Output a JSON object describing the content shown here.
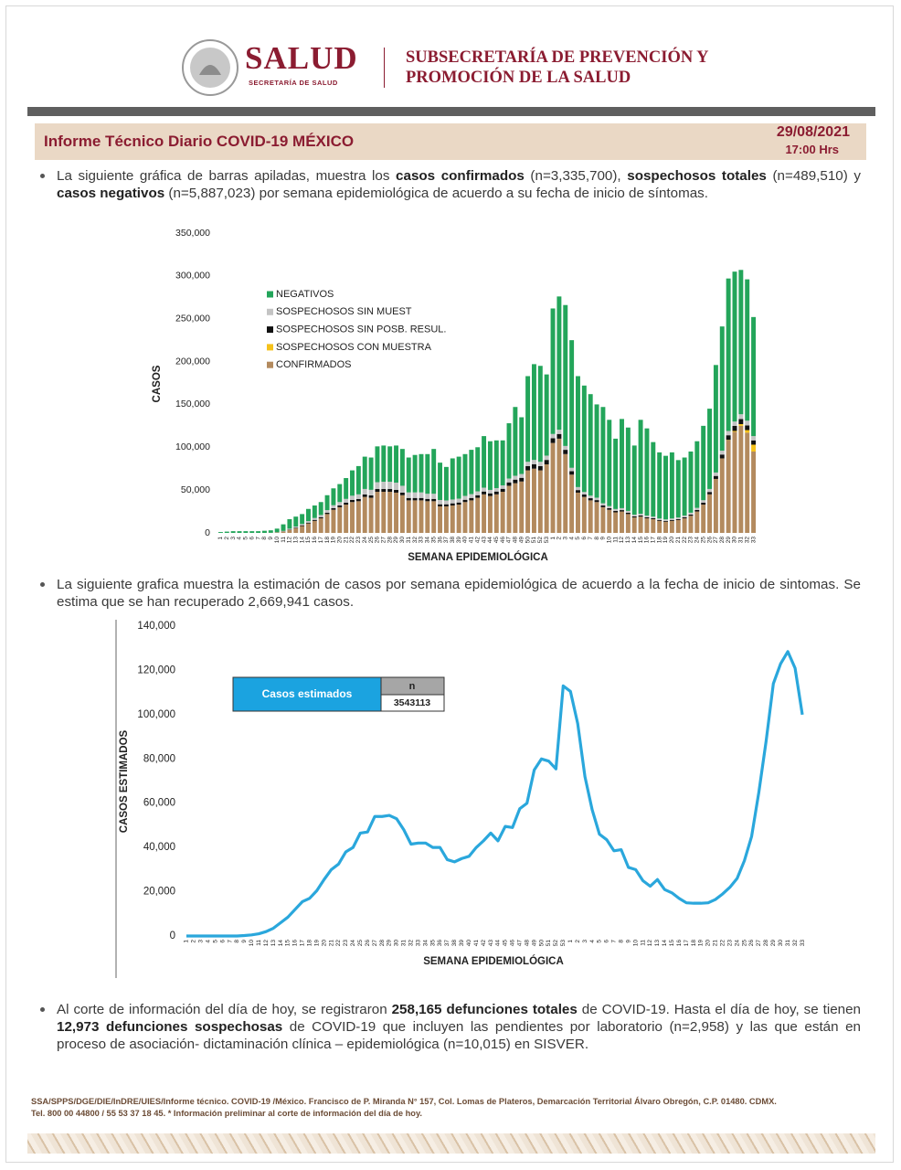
{
  "header": {
    "logo": "SALUD",
    "logo_sub": "SECRETARÍA DE SALUD",
    "subsecretaria": [
      "SUBSECRETARÍA DE PREVENCIÓN Y",
      "PROMOCIÓN DE LA SALUD"
    ]
  },
  "report": {
    "title": "Informe Técnico Diario COVID-19 MÉXICO",
    "date": "29/08/2021",
    "time": "17:00 Hrs"
  },
  "bullets": [
    [
      "La siguiente gráfica de barras apiladas, muestra los ",
      "casos confirmados",
      " (n=3,335,700), ",
      "sospechosos totales",
      " (n=489,510) y ",
      "casos negativos",
      " (n=5,887,023) por semana epidemiológica de acuerdo a su fecha de inicio de síntomas."
    ],
    [
      "La siguiente grafica muestra la estimación de casos por semana epidemiológica de acuerdo a la fecha de inicio de sintomas. Se estima que se han recuperado 2,669,941 casos."
    ],
    [
      "Al corte de información del día de hoy, se registraron ",
      "258,165 defunciones totales",
      " de COVID-19. Hasta el día de hoy, se tienen ",
      "12,973 defunciones sospechosas",
      " de COVID-19 que incluyen las pendientes por laboratorio (n=2,958) y las que están en proceso de asociación- dictaminación clínica – epidemiológica (n=10,015) en SISVER."
    ]
  ],
  "chart_data": [
    {
      "type": "bar",
      "stacked": true,
      "x_label": "SEMANA EPIDEMIOLÓGICA",
      "y_label": "CASOS",
      "categories": [
        "1",
        "2",
        "3",
        "4",
        "5",
        "6",
        "7",
        "8",
        "9",
        "10",
        "11",
        "12",
        "13",
        "14",
        "15",
        "16",
        "17",
        "18",
        "19",
        "20",
        "21",
        "22",
        "23",
        "24",
        "25",
        "26",
        "27",
        "28",
        "29",
        "30",
        "31",
        "32",
        "33",
        "34",
        "35",
        "36",
        "37",
        "38",
        "39",
        "40",
        "41",
        "42",
        "43",
        "44",
        "45",
        "46",
        "47",
        "48",
        "49",
        "50",
        "51",
        "52",
        "53",
        "1",
        "2",
        "3",
        "4",
        "5",
        "6",
        "7",
        "8",
        "9",
        "10",
        "11",
        "12",
        "13",
        "14",
        "15",
        "16",
        "17",
        "18",
        "19",
        "20",
        "21",
        "22",
        "23",
        "24",
        "25",
        "26",
        "27",
        "28",
        "29",
        "30",
        "31",
        "32",
        "33"
      ],
      "ylim": [
        0,
        350000
      ],
      "yticks": [
        0,
        {
          "value": 50000,
          "label": "50,000"
        },
        {
          "value": 100000,
          "label": "100,000"
        },
        {
          "value": 150000,
          "label": "150,000"
        },
        {
          "value": 200000,
          "label": "200,000"
        },
        {
          "value": 250000,
          "label": "250,000"
        },
        {
          "value": 300000,
          "label": "300,000"
        },
        {
          "value": 350000,
          "label": "350,000"
        }
      ],
      "series": [
        {
          "name": "NEGATIVOS",
          "color": "#23a55a",
          "values": [
            1000,
            1500,
            2000,
            2000,
            2000,
            2000,
            2000,
            2500,
            2900,
            4200,
            7700,
            11100,
            11600,
            11600,
            14200,
            14600,
            15100,
            17400,
            19700,
            21000,
            24300,
            29600,
            33000,
            37700,
            37700,
            41800,
            42300,
            41300,
            43300,
            43000,
            40700,
            43700,
            44700,
            46300,
            52300,
            43600,
            39100,
            48000,
            49000,
            48800,
            51700,
            51500,
            60200,
            56800,
            55700,
            52500,
            64500,
            80300,
            66200,
            100000,
            111800,
            112000,
            94800,
            146500,
            155500,
            164500,
            149000,
            129500,
            124200,
            118500,
            108900,
            112400,
            100700,
            82100,
            104100,
            97300,
            80700,
            109700,
            101800,
            87000,
            77200,
            74200,
            77200,
            67000,
            67800,
            71400,
            77800,
            86800,
            93700,
            125500,
            145000,
            178000,
            175000,
            168500,
            165000,
            139000
          ]
        },
        {
          "name": "SOSPECHOSOS SIN MUEST",
          "color": "#c4c4c4",
          "values": [
            0,
            0,
            0,
            0,
            0,
            0,
            0,
            0,
            0,
            200,
            500,
            900,
            1200,
            1500,
            1800,
            2200,
            2500,
            3000,
            3500,
            4000,
            4500,
            5000,
            5500,
            6500,
            6500,
            8000,
            8500,
            8500,
            8500,
            8000,
            6500,
            6500,
            6500,
            6000,
            6000,
            5000,
            4500,
            4500,
            4500,
            4500,
            4500,
            4500,
            4500,
            4000,
            4000,
            4000,
            4500,
            4500,
            4500,
            5000,
            5000,
            5000,
            5000,
            5000,
            5000,
            4500,
            4000,
            3500,
            3000,
            3000,
            2800,
            2600,
            2500,
            2300,
            2300,
            2200,
            2000,
            2000,
            2000,
            1900,
            1800,
            1800,
            1800,
            1900,
            2000,
            2200,
            2500,
            3000,
            3500,
            4000,
            4500,
            5000,
            5000,
            5500,
            5500,
            5000
          ]
        },
        {
          "name": "SOSPECHOSOS SIN POSB. RESUL.",
          "color": "#111111",
          "values": [
            0,
            0,
            0,
            0,
            0,
            0,
            0,
            0,
            0,
            100,
            300,
            500,
            700,
            900,
            1000,
            1200,
            1400,
            1600,
            1800,
            2000,
            2200,
            2400,
            2500,
            2800,
            2800,
            3200,
            3200,
            3200,
            3200,
            3000,
            2800,
            2800,
            2800,
            2700,
            2700,
            2400,
            2400,
            2500,
            2500,
            2700,
            2800,
            3000,
            3300,
            3200,
            3300,
            3500,
            4000,
            4200,
            4300,
            5000,
            5200,
            5000,
            5200,
            5500,
            5500,
            5000,
            4000,
            3000,
            2800,
            2500,
            2300,
            2000,
            1800,
            1600,
            1600,
            1500,
            1300,
            1300,
            1200,
            1100,
            1000,
            1000,
            1000,
            1100,
            1200,
            1400,
            1700,
            2200,
            2800,
            3500,
            4500,
            5500,
            6000,
            6000,
            5500,
            5000
          ]
        },
        {
          "name": "SOSPECHOSOS CON MUESTRA",
          "color": "#f5c21b",
          "values": [
            0,
            0,
            0,
            0,
            0,
            0,
            0,
            0,
            0,
            0,
            0,
            0,
            0,
            0,
            0,
            0,
            0,
            0,
            0,
            0,
            0,
            0,
            0,
            0,
            0,
            0,
            0,
            0,
            0,
            0,
            0,
            0,
            0,
            0,
            0,
            0,
            0,
            0,
            0,
            0,
            0,
            0,
            0,
            0,
            0,
            0,
            0,
            0,
            0,
            0,
            0,
            0,
            0,
            0,
            0,
            0,
            0,
            0,
            0,
            0,
            0,
            0,
            0,
            0,
            0,
            0,
            0,
            0,
            0,
            0,
            0,
            0,
            0,
            0,
            0,
            0,
            0,
            0,
            0,
            0,
            0,
            500,
            1000,
            2000,
            3000,
            8000
          ]
        },
        {
          "name": "CONFIRMADOS",
          "color": "#b38a5e",
          "values": [
            0,
            0,
            0,
            0,
            0,
            0,
            0,
            0,
            100,
            500,
            1500,
            3500,
            5500,
            8000,
            11000,
            14000,
            17000,
            22000,
            27000,
            30000,
            33000,
            36000,
            37000,
            42000,
            41000,
            48000,
            48000,
            48000,
            47000,
            44000,
            38000,
            38000,
            38000,
            37000,
            37000,
            31000,
            31000,
            32000,
            33000,
            36000,
            38000,
            41000,
            45000,
            43000,
            45000,
            48000,
            55000,
            58000,
            60000,
            73000,
            75000,
            73000,
            80000,
            105000,
            110000,
            92000,
            68000,
            47000,
            42000,
            38000,
            36000,
            30000,
            27000,
            24000,
            25000,
            22000,
            18000,
            19000,
            17000,
            16000,
            14000,
            13000,
            14000,
            15000,
            17000,
            20000,
            25000,
            33000,
            45000,
            63000,
            87000,
            108000,
            118000,
            125000,
            117000,
            95000
          ]
        }
      ]
    },
    {
      "type": "line",
      "x_label": "SEMANA EPIDEMIOLÓGICA",
      "y_label": "CASOS ESTIMADOS",
      "categories": [
        "1",
        "2",
        "3",
        "4",
        "5",
        "6",
        "7",
        "8",
        "9",
        "10",
        "11",
        "12",
        "13",
        "14",
        "15",
        "16",
        "17",
        "18",
        "19",
        "20",
        "21",
        "22",
        "23",
        "24",
        "25",
        "26",
        "27",
        "28",
        "29",
        "30",
        "31",
        "32",
        "33",
        "34",
        "35",
        "36",
        "37",
        "38",
        "39",
        "40",
        "41",
        "42",
        "43",
        "44",
        "45",
        "46",
        "47",
        "48",
        "49",
        "50",
        "51",
        "52",
        "53",
        "1",
        "2",
        "3",
        "4",
        "5",
        "6",
        "7",
        "8",
        "9",
        "10",
        "11",
        "12",
        "13",
        "14",
        "15",
        "16",
        "17",
        "18",
        "19",
        "20",
        "21",
        "22",
        "23",
        "24",
        "25",
        "26",
        "27",
        "28",
        "29",
        "30",
        "31",
        "32",
        "33"
      ],
      "ylim": [
        0,
        140000
      ],
      "yticks": [
        0,
        {
          "value": 20000,
          "label": "20,000"
        },
        {
          "value": 40000,
          "label": "40,000"
        },
        {
          "value": 60000,
          "label": "60,000"
        },
        {
          "value": 80000,
          "label": "80,000"
        },
        {
          "value": 100000,
          "label": "100,000"
        },
        {
          "value": 120000,
          "label": "120,000"
        },
        {
          "value": 140000,
          "label": "140,000"
        }
      ],
      "color": "#2aa7dc",
      "values": [
        0,
        0,
        0,
        0,
        0,
        0,
        0,
        0,
        200,
        500,
        1000,
        2000,
        3500,
        6000,
        8500,
        12000,
        15500,
        17000,
        20500,
        25500,
        30000,
        32500,
        38000,
        40000,
        46500,
        47000,
        54000,
        54000,
        54500,
        53000,
        48000,
        41500,
        42000,
        42000,
        40000,
        40000,
        34500,
        33500,
        35000,
        36000,
        40000,
        43000,
        46500,
        43000,
        49500,
        49000,
        57500,
        60000,
        75000,
        80000,
        79000,
        75500,
        113000,
        110500,
        96000,
        72000,
        57000,
        46000,
        43500,
        38500,
        39000,
        31000,
        30000,
        25000,
        22500,
        25500,
        21000,
        19500,
        17000,
        15000,
        14800,
        14800,
        15000,
        16500,
        19000,
        22000,
        26000,
        34000,
        45000,
        65000,
        88000,
        114000,
        123000,
        128500,
        121000,
        100000
      ],
      "summary_table": {
        "label": "Casos estimados",
        "header": "n",
        "value": 3543113
      }
    }
  ],
  "footer": [
    "SSA/SPPS/DGE/DIE/InDRE/UIES/Informe técnico. COVID-19 /México. Francisco de P. Miranda N° 157, Col. Lomas de Plateros, Demarcación Territorial Álvaro Obregón, C.P. 01480. CDMX.",
    "Tel. 800 00 44800 / 55 53 37 18 45. * Información preliminar al corte de información del día de hoy."
  ]
}
